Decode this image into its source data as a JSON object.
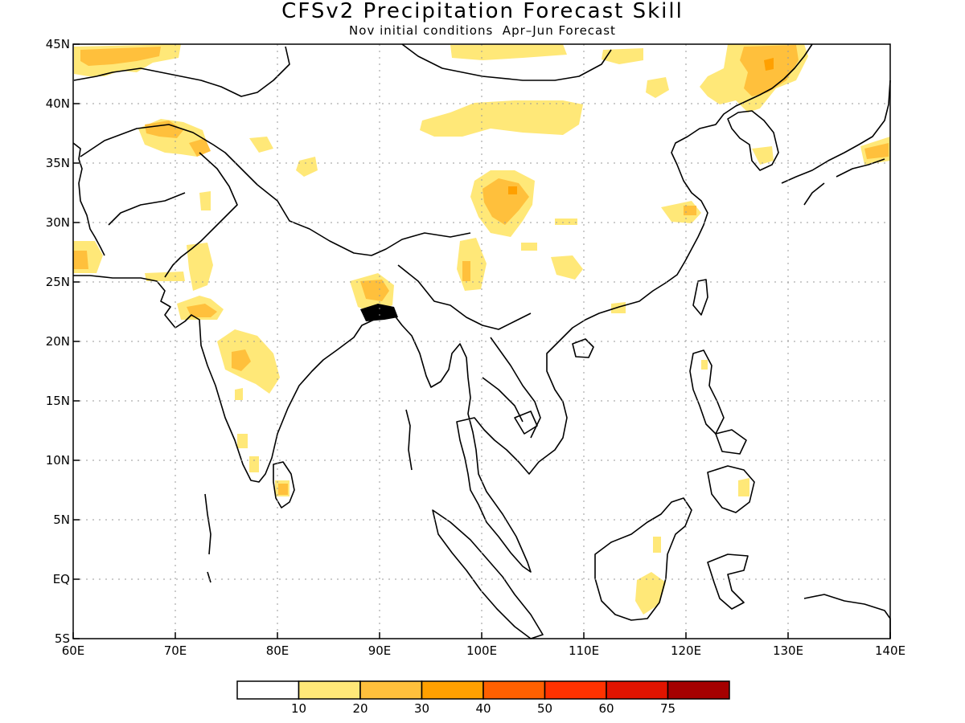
{
  "title": "CFSv2 Precipitation Forecast Skill",
  "subtitle": "Nov initial conditions  Apr–Jun Forecast",
  "map": {
    "projection": "lat-lon",
    "lon_range": [
      60,
      140
    ],
    "lat_range": [
      -5,
      45
    ],
    "lat_ticks": [
      "45N",
      "40N",
      "35N",
      "30N",
      "25N",
      "20N",
      "15N",
      "10N",
      "5N",
      "EQ",
      "5S"
    ],
    "lon_ticks": [
      "60E",
      "70E",
      "80E",
      "90E",
      "100E",
      "110E",
      "120E",
      "130E",
      "140E"
    ],
    "grid": "dotted",
    "background_color": "#ffffff",
    "coastline_color": "#000000"
  },
  "colorbar": {
    "colors": [
      "#ffffff",
      "#ffe878",
      "#ffc03c",
      "#ffa000",
      "#ff6000",
      "#ff3200",
      "#e11400",
      "#a50000"
    ],
    "labels": [
      "10",
      "20",
      "30",
      "40",
      "50",
      "60",
      "75"
    ]
  },
  "skill_regions": {
    "low_color": "#ffe878",
    "mid_color": "#ffc03c",
    "high_color": "#ffa000"
  }
}
